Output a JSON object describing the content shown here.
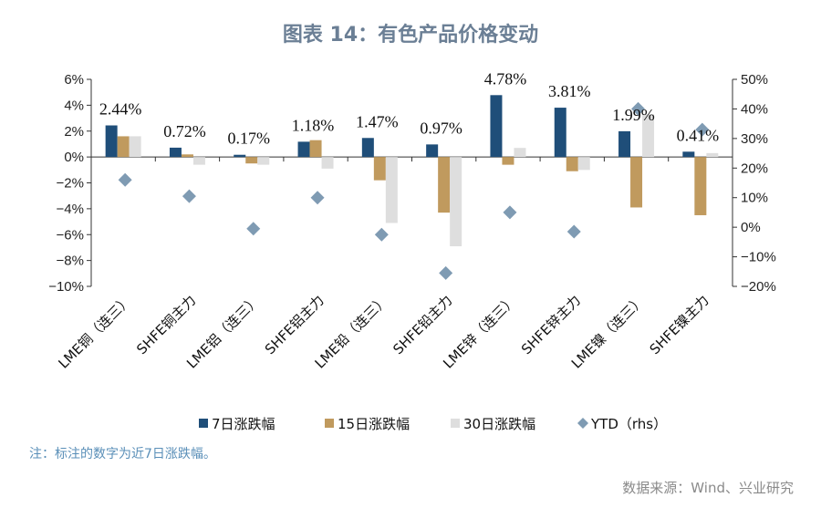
{
  "title": "图表 14：有色产品价格变动",
  "chart_data": {
    "type": "bar",
    "categories": [
      "LME铜（连三）",
      "SHFE铜主力",
      "LME铝（连三）",
      "SHFE铝主力",
      "LME铅（连三）",
      "SHFE铅主力",
      "LME锌（连三）",
      "SHFE锌主力",
      "LME镍（连三）",
      "SHFE镍主力"
    ],
    "series": [
      {
        "name": "7日涨跌幅",
        "color": "#1f4e79",
        "values": [
          2.44,
          0.72,
          0.17,
          1.18,
          1.47,
          0.97,
          4.78,
          3.81,
          1.99,
          0.41
        ]
      },
      {
        "name": "15日涨跌幅",
        "color": "#c09a5e",
        "values": [
          1.6,
          0.2,
          -0.5,
          1.3,
          -1.8,
          -4.3,
          -0.6,
          -1.1,
          -3.9,
          -4.5
        ]
      },
      {
        "name": "30日涨跌幅",
        "color": "#dedede",
        "values": [
          1.6,
          -0.6,
          -0.6,
          -0.9,
          -5.1,
          -6.9,
          0.7,
          -1.0,
          3.3,
          0.3
        ]
      }
    ],
    "ytd": {
      "name": "YTD (rhs)",
      "color": "#7f9bb3",
      "values": [
        16,
        10.5,
        -0.5,
        10,
        -2.5,
        -15.5,
        5,
        -1.5,
        40,
        33
      ]
    },
    "data_labels": [
      "2.44%",
      "0.72%",
      "0.17%",
      "1.18%",
      "1.47%",
      "0.97%",
      "4.78%",
      "3.81%",
      "1.99%",
      "0.41%"
    ],
    "left_axis": {
      "ylim": [
        -10,
        6
      ],
      "ticks": [
        6,
        4,
        2,
        0,
        -2,
        -4,
        -6,
        -8,
        -10
      ],
      "tick_labels": [
        "6%",
        "4%",
        "2%",
        "0%",
        "−2%",
        "−4%",
        "−6%",
        "−8%",
        "−10%"
      ]
    },
    "right_axis": {
      "ylim": [
        -20,
        50
      ],
      "ticks": [
        50,
        40,
        30,
        20,
        10,
        0,
        -10,
        -20
      ],
      "tick_labels": [
        "50%",
        "40%",
        "30%",
        "20%",
        "10%",
        "0%",
        "−10%",
        "−20%"
      ]
    },
    "legend": [
      "7日涨跌幅",
      "15日涨跌幅",
      "30日涨跌幅",
      "YTD（rhs）"
    ]
  },
  "note": "注：标注的数字为近7日涨跌幅。",
  "source": "数据来源：Wind、兴业研究"
}
